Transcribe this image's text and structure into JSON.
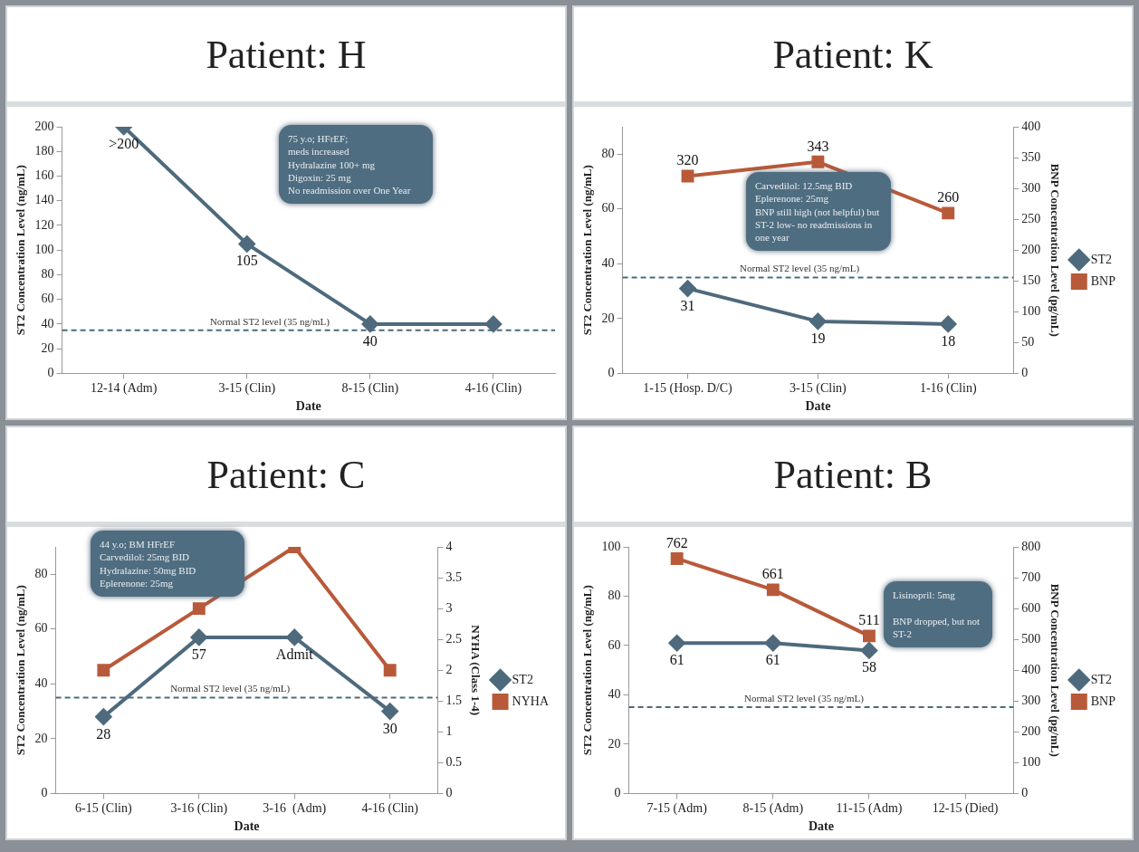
{
  "chart_data": [
    {
      "type": "line",
      "title": "Patient: H",
      "xlabel": "Date",
      "ylabel": "ST2 Concentration Level (ng/mL)",
      "categories": [
        "12-14 (Adm)",
        "3-15 (Clin)",
        "8-15 (Clin)",
        "4-16 (Clin)"
      ],
      "series": [
        {
          "color": "#4e6a7c",
          "marker": "diamond",
          "values": [
            200,
            105,
            40,
            40
          ],
          "value_labels": [
            ">200",
            "105",
            "40",
            null
          ]
        }
      ],
      "ylim": [
        0,
        200
      ],
      "yticks": [
        0,
        20,
        40,
        60,
        80,
        100,
        120,
        140,
        160,
        180,
        200
      ],
      "ref_lines": [
        {
          "axis": "y",
          "value": 35,
          "label": "Normal ST2 level (35 ng/mL)",
          "color": "#4e6a7c",
          "line_style": "dashed"
        }
      ],
      "annotations": [
        "75 y.o; HFrEF;\nmeds increased\n   Hydralazine 100+ mg\n   Digoxin: 25 mg\nNo readmission over One Year"
      ],
      "legend": false,
      "grid": false
    },
    {
      "type": "line",
      "title": "Patient: K",
      "xlabel": "Date",
      "ylabel": "ST2 Concentration Level (ng/mL)",
      "y2label": "BNP Concentration Level (pg/mL)",
      "categories": [
        "1-15 (Hosp. D/C)",
        "3-15 (Clin)",
        "1-16 (Clin)"
      ],
      "series": [
        {
          "name": "ST2",
          "color": "#4e6a7c",
          "marker": "diamond",
          "values": [
            31,
            19,
            18
          ],
          "value_labels": [
            "31",
            "19",
            "18"
          ]
        },
        {
          "name": "BNP",
          "color": "#b85a3a",
          "marker": "square",
          "axis": "y2",
          "values": [
            320,
            343,
            260
          ],
          "value_labels": [
            "320",
            "343",
            "260"
          ]
        }
      ],
      "ylim": [
        0,
        90
      ],
      "yticks": [
        0,
        20,
        40,
        60,
        80
      ],
      "y2lim": [
        0,
        400
      ],
      "y2ticks": [
        0,
        50,
        100,
        150,
        200,
        250,
        300,
        350,
        400
      ],
      "ref_lines": [
        {
          "axis": "y",
          "value": 35,
          "label": "Normal ST2 level (35 ng/mL)",
          "color": "#4e6a7c",
          "line_style": "dashed"
        }
      ],
      "annotations": [
        "Carvedilol: 12.5mg BID\nEplerenone: 25mg\n   BNP still high (not helpful) but ST-2 low- no readmissions in one year"
      ],
      "legend": "right",
      "grid": false
    },
    {
      "type": "line",
      "title": "Patient: C",
      "xlabel": "Date",
      "ylabel": "ST2 Concentration Level (ng/mL)",
      "y2label": "NYHA (Class 1-4)",
      "categories": [
        "6-15 (Clin)",
        "3-16 (Clin)",
        "3-16  (Adm)",
        "4-16 (Clin)"
      ],
      "series": [
        {
          "name": "ST2",
          "color": "#4e6a7c",
          "marker": "diamond",
          "values": [
            28,
            57,
            57,
            30
          ],
          "value_labels": [
            "28",
            "57",
            "Admit",
            "30"
          ]
        },
        {
          "name": "NYHA",
          "color": "#b85a3a",
          "marker": "square",
          "axis": "y2",
          "values": [
            2,
            3,
            4,
            2
          ]
        }
      ],
      "ylim": [
        0,
        90
      ],
      "yticks": [
        0,
        20,
        40,
        60,
        80
      ],
      "y2lim": [
        0,
        4
      ],
      "y2ticks": [
        0,
        0.5,
        1,
        1.5,
        2,
        2.5,
        3,
        3.5,
        4
      ],
      "ref_lines": [
        {
          "axis": "y",
          "value": 35,
          "label": "Normal ST2 level (35 ng/mL)",
          "color": "#4e6a7c",
          "line_style": "dashed"
        }
      ],
      "annotations": [
        "44 y.o; BM HFrEF\nCarvedilol: 25mg BID\nHydralazine: 50mg BID\nEplerenone: 25mg"
      ],
      "legend": "right",
      "grid": false
    },
    {
      "type": "line",
      "title": "Patient: B",
      "xlabel": "Date",
      "ylabel": "ST2 Concentration Level (ng/mL)",
      "y2label": "BNP Concentration Level (pg/mL)",
      "categories": [
        "7-15 (Adm)",
        "8-15 (Adm)",
        "11-15 (Adm)",
        "12-15 (Died)"
      ],
      "series": [
        {
          "name": "ST2",
          "color": "#4e6a7c",
          "marker": "diamond",
          "values": [
            61,
            61,
            58,
            null
          ],
          "value_labels": [
            "61",
            "61",
            "58",
            null
          ]
        },
        {
          "name": "BNP",
          "color": "#b85a3a",
          "marker": "square",
          "axis": "y2",
          "values": [
            762,
            661,
            511,
            null
          ],
          "value_labels": [
            "762",
            "661",
            "511",
            null
          ]
        }
      ],
      "ylim": [
        0,
        100
      ],
      "yticks": [
        0,
        20,
        40,
        60,
        80,
        100
      ],
      "y2lim": [
        0,
        800
      ],
      "y2ticks": [
        0,
        100,
        200,
        300,
        400,
        500,
        600,
        700,
        800
      ],
      "ref_lines": [
        {
          "axis": "y",
          "value": 35,
          "label": "Normal ST2 level (35 ng/mL)",
          "color": "#4e6a7c",
          "line_style": "dashed"
        }
      ],
      "annotations": [
        "Lisinopril: 5mg\n\nBNP dropped, but not ST-2"
      ],
      "legend": "right",
      "grid": false
    }
  ]
}
